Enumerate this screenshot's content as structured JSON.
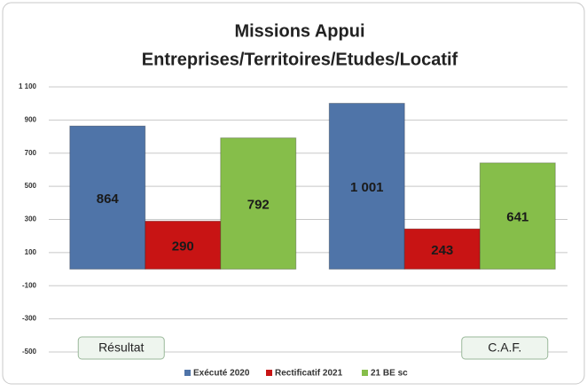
{
  "chart_data": {
    "type": "bar",
    "title": [
      "Missions Appui",
      "Entreprises/Territoires/Etudes/Locatif"
    ],
    "categories": [
      "Résultat",
      "C.A.F."
    ],
    "series": [
      {
        "name": "Exécuté 2020",
        "color": "#4f74a8",
        "values": [
          864,
          1001
        ],
        "value_labels": [
          "864",
          "1 001"
        ]
      },
      {
        "name": "Rectificatif 2021",
        "color": "#c81414",
        "values": [
          290,
          243
        ]
      },
      {
        "name": "21 BE sc",
        "color": "#86be4a",
        "values": [
          792,
          641
        ]
      }
    ],
    "ylim": [
      -500,
      1100
    ],
    "yticks": [
      -500,
      -300,
      -100,
      100,
      300,
      500,
      700,
      900,
      {
        "value": 1100,
        "label": "1 100"
      }
    ],
    "grid": true,
    "legend": "bottom"
  }
}
